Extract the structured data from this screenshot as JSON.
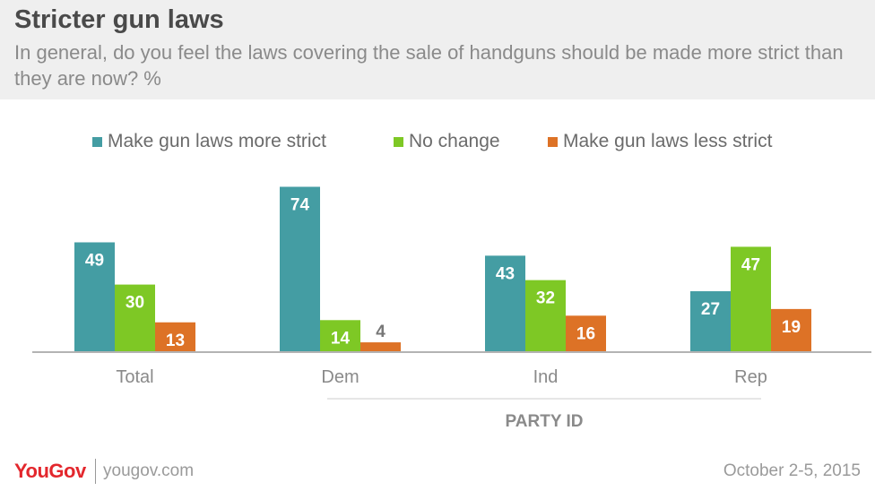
{
  "header": {
    "title": "Stricter gun laws",
    "subtitle": "In general, do you feel the laws covering the sale of handguns should be made more strict than they are now? %"
  },
  "chart_data": {
    "type": "bar",
    "categories": [
      "Total",
      "Dem",
      "Ind",
      "Rep"
    ],
    "series": [
      {
        "name": "Make gun laws more strict",
        "values": [
          49,
          74,
          43,
          27
        ],
        "color": "#449da3"
      },
      {
        "name": "No change",
        "values": [
          30,
          14,
          32,
          47
        ],
        "color": "#7ec825"
      },
      {
        "name": "Make gun laws less strict",
        "values": [
          13,
          4,
          16,
          19
        ],
        "color": "#dd7226"
      }
    ],
    "group_label": "PARTY ID",
    "legend_position": "top",
    "grid": false
  },
  "footer": {
    "brand": "YouGov",
    "site": "yougov.com",
    "date": "October 2-5, 2015"
  }
}
